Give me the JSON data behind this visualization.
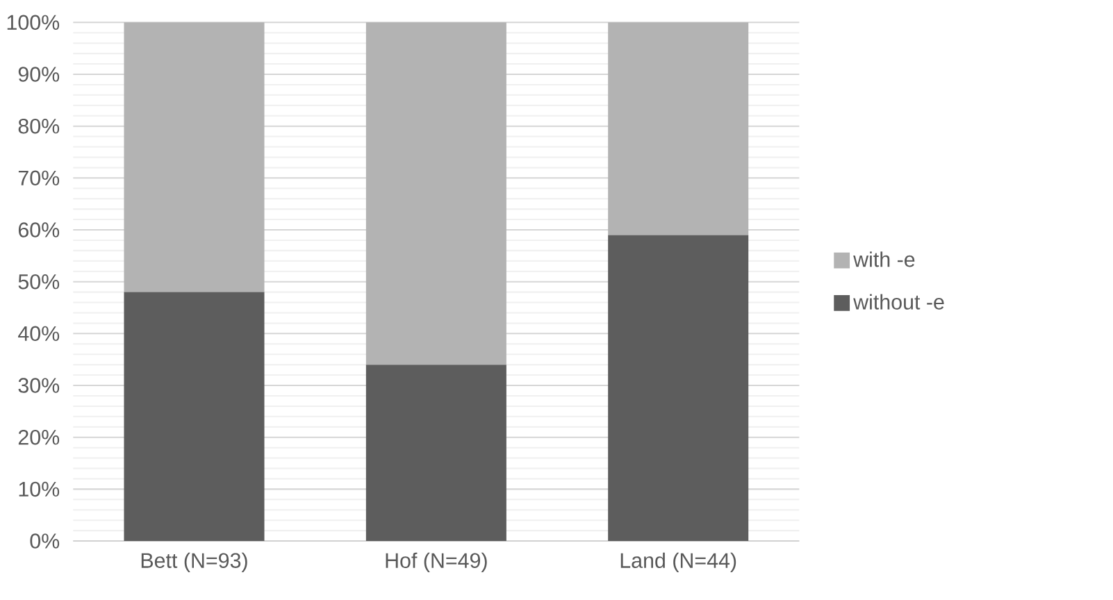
{
  "chart_data": {
    "type": "bar",
    "stacked": true,
    "categories": [
      "Bett (N=93)",
      "Hof (N=49)",
      "Land (N=44)"
    ],
    "series": [
      {
        "name": "without -e",
        "color": "#5d5d5d",
        "values": [
          48,
          34,
          59
        ]
      },
      {
        "name": "with -e",
        "color": "#b3b3b3",
        "values": [
          52,
          66,
          41
        ]
      }
    ],
    "ylim": [
      0,
      100
    ],
    "yticks": [
      {
        "value": 0,
        "label": "0%"
      },
      {
        "value": 10,
        "label": "10%"
      },
      {
        "value": 20,
        "label": "20%"
      },
      {
        "value": 30,
        "label": "30%"
      },
      {
        "value": 40,
        "label": "40%"
      },
      {
        "value": 50,
        "label": "50%"
      },
      {
        "value": 60,
        "label": "60%"
      },
      {
        "value": 70,
        "label": "70%"
      },
      {
        "value": 80,
        "label": "80%"
      },
      {
        "value": 90,
        "label": "90%"
      },
      {
        "value": 100,
        "label": "100%"
      }
    ],
    "grid": "y",
    "legend": "right"
  }
}
